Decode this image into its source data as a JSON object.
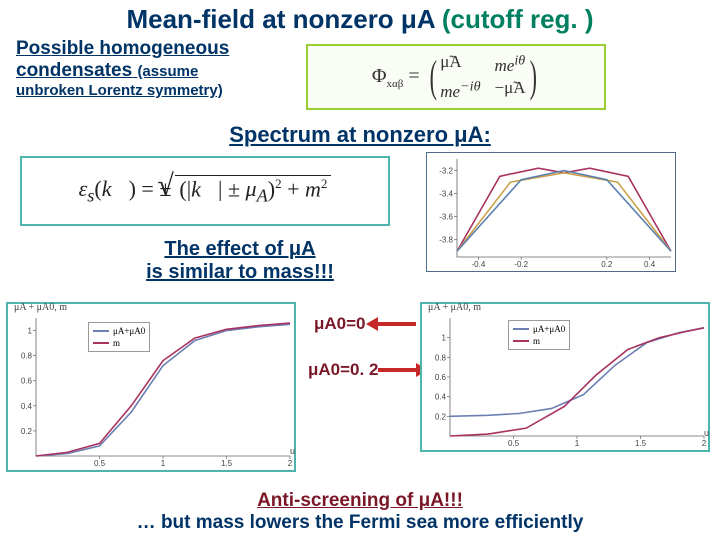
{
  "title": {
    "main": "Mean-field at nonzero μA",
    "annot": "(cutoff reg. )"
  },
  "subtitle1": {
    "line1": "Possible homogeneous",
    "line2": "condensates",
    "line2b": "(assume",
    "line3": "unbroken Lorentz symmetry)"
  },
  "matrix": {
    "lhs": "Φ",
    "lhs_sub": "xαβ",
    "eq": "=",
    "a11": "μ̃A",
    "a12": "me^{iθ}",
    "a21": "me^{−iθ}",
    "a22": "−μ̃A"
  },
  "spectrum_title": "Spectrum at nonzero μA:",
  "eps_formula": {
    "lhs": "ε_s(k⃗) = ±",
    "inside": "(|k⃗| ± μA)",
    "sup": "2",
    "plus": " + m",
    "sup2": "2"
  },
  "plot1": {
    "type": "line",
    "frame_color": "#516b8c",
    "xlim": [
      -0.5,
      0.5
    ],
    "xticks": [
      -0.4,
      -0.2,
      0.2,
      0.4
    ],
    "yticks": [
      -3.2,
      -3.4,
      -3.6,
      -3.8
    ],
    "series": [
      {
        "color": "#a83260",
        "points": [
          [
            -0.5,
            -3.9
          ],
          [
            -0.3,
            -3.25
          ],
          [
            -0.12,
            -3.18
          ],
          [
            0,
            -3.22
          ],
          [
            0.12,
            -3.18
          ],
          [
            0.3,
            -3.25
          ],
          [
            0.5,
            -3.9
          ]
        ]
      },
      {
        "color": "#c9a24a",
        "points": [
          [
            -0.5,
            -3.9
          ],
          [
            -0.25,
            -3.3
          ],
          [
            0,
            -3.22
          ],
          [
            0.25,
            -3.3
          ],
          [
            0.5,
            -3.9
          ]
        ]
      },
      {
        "color": "#5b7fae",
        "points": [
          [
            -0.5,
            -3.9
          ],
          [
            -0.2,
            -3.28
          ],
          [
            0,
            -3.2
          ],
          [
            0.2,
            -3.28
          ],
          [
            0.5,
            -3.9
          ]
        ]
      }
    ]
  },
  "effect_text": {
    "line1": "The effect of μA",
    "line2": "is similar to mass!!!"
  },
  "arrow_labels": {
    "l1": "μA0=0",
    "l2": "μA0=0. 2"
  },
  "plot_shared": {
    "title": "μA + μA0, m",
    "legend": [
      {
        "label": "μA+μA0",
        "color": "#6b7fb3"
      },
      {
        "label": "m",
        "color": "#a83260"
      }
    ],
    "xlabel": "u",
    "xlim": [
      0,
      2.0
    ],
    "xticks": [
      0.5,
      1.0,
      1.5,
      2.0
    ]
  },
  "plot2": {
    "type": "line",
    "ylim": [
      0,
      1.1
    ],
    "yticks": [
      0.2,
      0.4,
      0.6,
      0.8,
      1.0
    ],
    "series": [
      {
        "color": "#6b7fb3",
        "points": [
          [
            0,
            0
          ],
          [
            0.25,
            0.02
          ],
          [
            0.5,
            0.08
          ],
          [
            0.75,
            0.35
          ],
          [
            1.0,
            0.72
          ],
          [
            1.25,
            0.92
          ],
          [
            1.5,
            1.0
          ],
          [
            1.75,
            1.03
          ],
          [
            2.0,
            1.05
          ]
        ]
      },
      {
        "color": "#a83260",
        "points": [
          [
            0,
            0
          ],
          [
            0.25,
            0.03
          ],
          [
            0.5,
            0.1
          ],
          [
            0.75,
            0.4
          ],
          [
            1.0,
            0.76
          ],
          [
            1.25,
            0.94
          ],
          [
            1.5,
            1.01
          ],
          [
            1.75,
            1.04
          ],
          [
            2.0,
            1.06
          ]
        ]
      }
    ]
  },
  "plot3": {
    "type": "line",
    "ylim": [
      0,
      1.2
    ],
    "yticks": [
      0.2,
      0.4,
      0.6,
      0.8,
      1.0
    ],
    "series": [
      {
        "color": "#6b7fb3",
        "points": [
          [
            0,
            0.2
          ],
          [
            0.3,
            0.21
          ],
          [
            0.55,
            0.23
          ],
          [
            0.8,
            0.28
          ],
          [
            1.05,
            0.42
          ],
          [
            1.3,
            0.72
          ],
          [
            1.55,
            0.95
          ],
          [
            1.8,
            1.05
          ],
          [
            2.0,
            1.1
          ]
        ]
      },
      {
        "color": "#a83260",
        "points": [
          [
            0,
            0
          ],
          [
            0.3,
            0.02
          ],
          [
            0.6,
            0.08
          ],
          [
            0.9,
            0.3
          ],
          [
            1.15,
            0.62
          ],
          [
            1.4,
            0.88
          ],
          [
            1.65,
            1.0
          ],
          [
            1.85,
            1.06
          ],
          [
            2.0,
            1.1
          ]
        ]
      }
    ]
  },
  "bottom": {
    "line1": "Anti-screening of μA!!!",
    "line2": "… but mass lowers the Fermi sea more efficiently"
  },
  "colors": {
    "blue": "#003366",
    "green": "#008060",
    "maroon": "#7b1828",
    "teal_border": "#4db6ac",
    "lime_border": "#9acd32",
    "arrow": "#c62828"
  }
}
